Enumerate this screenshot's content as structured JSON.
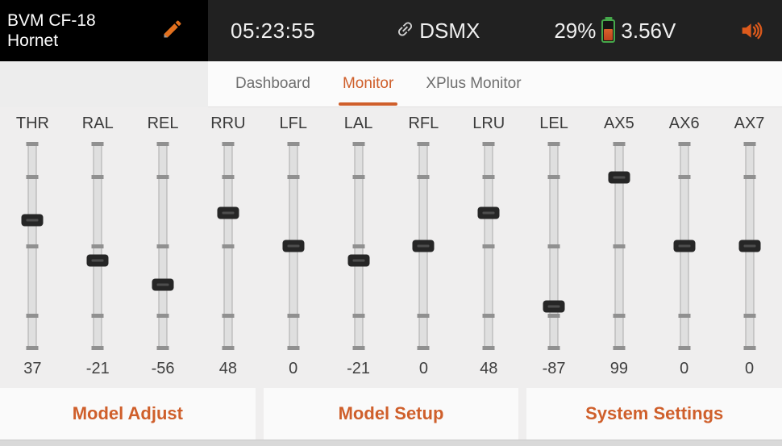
{
  "topbar": {
    "model_name_line1": "BVM CF-18",
    "model_name_line2": "Hornet",
    "time": "05:23:55",
    "protocol": "DSMX",
    "battery_percent": "29%",
    "battery_voltage": "3.56V"
  },
  "tabs": [
    {
      "label": "Dashboard",
      "active": false
    },
    {
      "label": "Monitor",
      "active": true
    },
    {
      "label": "XPlus Monitor",
      "active": false
    }
  ],
  "monitor": {
    "scale": {
      "min": -150,
      "max": 150,
      "tick_values": [
        150,
        100,
        0,
        -100,
        -150
      ]
    },
    "channels": [
      {
        "name": "THR",
        "value": 37
      },
      {
        "name": "RAL",
        "value": -21
      },
      {
        "name": "REL",
        "value": -56
      },
      {
        "name": "RRU",
        "value": 48
      },
      {
        "name": "LFL",
        "value": 0
      },
      {
        "name": "LAL",
        "value": -21
      },
      {
        "name": "RFL",
        "value": 0
      },
      {
        "name": "LRU",
        "value": 48
      },
      {
        "name": "LEL",
        "value": -87
      },
      {
        "name": "AX5",
        "value": 99
      },
      {
        "name": "AX6",
        "value": 0
      },
      {
        "name": "AX7",
        "value": 0
      }
    ]
  },
  "footer": {
    "buttons": [
      "Model Adjust",
      "Model Setup",
      "System Settings"
    ]
  },
  "icons": {
    "edit": "pencil-icon",
    "link": "link-icon",
    "battery": "battery-icon",
    "volume": "speaker-icon"
  },
  "colors": {
    "accent": "#cf5f2b",
    "pencil_orange": "#e2701e",
    "speaker_orange": "#dd5a1c",
    "topbar_bg": "#212121",
    "model_box_bg": "#000000",
    "battery_green": "#45a84b",
    "battery_fill_orange": "#cc5426",
    "monitor_bg": "#efeeee"
  }
}
